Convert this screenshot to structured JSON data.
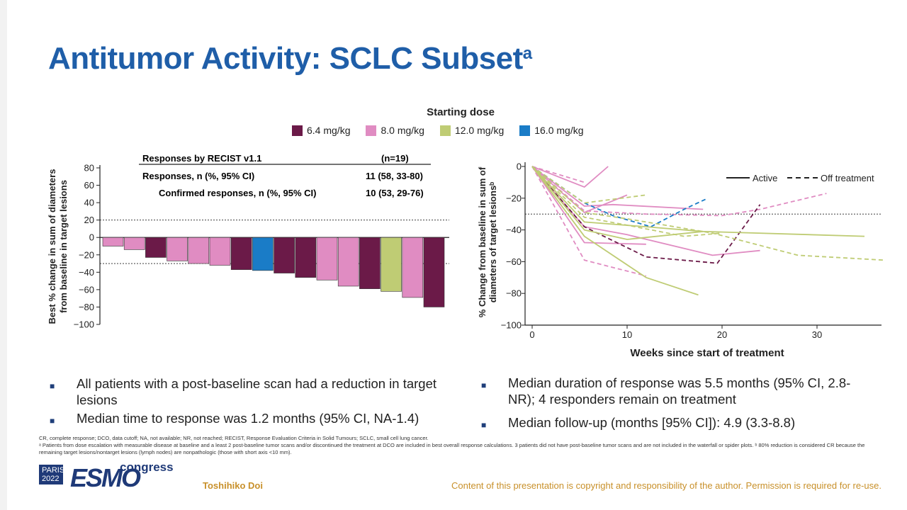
{
  "slide": {
    "title": "Antitumor Activity: SCLC Subset",
    "title_sup": "a",
    "legend_title": "Starting dose",
    "legend": [
      {
        "label": "6.4 mg/kg",
        "color": "#6b1a48"
      },
      {
        "label": "8.0 mg/kg",
        "color": "#e08cc2"
      },
      {
        "label": "12.0 mg/kg",
        "color": "#bfcc74"
      },
      {
        "label": "16.0 mg/kg",
        "color": "#1a7cc7"
      }
    ],
    "table": {
      "header_label": "Responses by RECIST v1.1",
      "header_value": "(n=19)",
      "row1_label": "Responses, n (%, 95% CI)",
      "row1_value": "11 (58, 33-80)",
      "row2_label": "Confirmed responses, n (%, 95% CI)",
      "row2_value": "10 (53, 29-76)"
    },
    "bullets_left": [
      "All patients with a post-baseline scan had a reduction in target lesions",
      "Median time to response was 1.2 months (95% CI, NA-1.4)"
    ],
    "bullets_right": [
      "Median duration of response was 5.5 months (95% CI, 2.8-NR); 4 responders remain on treatment",
      "Median follow-up (months [95% CI]): 4.9 (3.3-8.8)"
    ],
    "footnote1": "CR, complete response; DCO, data cutoff; NA, not available; NR, not reached; RECIST, Response Evaluation Criteria in Solid Tumours; SCLC, small cell lung cancer.",
    "footnote2": "ᵃ Patients from dose escalation with measurable disease at baseline and a least 2 post-baseline tumor scans and/or discontinued the treatment at DCO are included in best overall response calculations. 3 patients did not have post-baseline tumor scans and are not included in the waterfall or spider plots. ᵇ 80% reduction is considered CR because the remaining target lesions/nontarget lesions (lymph nodes) are nonpathologic (those with short axis <10 mm).",
    "logo_city": "PARIS",
    "logo_year": "2022",
    "logo_brand": "ESMO",
    "logo_congress": "congress",
    "author": "Toshihiko Doi",
    "copyright": "Content of this presentation is copyright and responsibility of the author. Permission is required for re-use."
  },
  "chart_data": [
    {
      "type": "bar",
      "title": "",
      "ylabel": "Best % change in sum of diameters from baseline in target lesions",
      "xlabel": "",
      "ylim": [
        -100,
        80
      ],
      "yticks": [
        80,
        60,
        40,
        20,
        0,
        -20,
        -40,
        -60,
        -80,
        -100
      ],
      "reference_lines": [
        20,
        -30
      ],
      "values": [
        -10,
        -14,
        -23,
        -27,
        -30,
        -32,
        -37,
        -38,
        -41,
        -46,
        -49,
        -56,
        -59,
        -62,
        -69,
        -80
      ],
      "colors": [
        "#e08cc2",
        "#e08cc2",
        "#6b1a48",
        "#e08cc2",
        "#e08cc2",
        "#e08cc2",
        "#6b1a48",
        "#1a7cc7",
        "#6b1a48",
        "#6b1a48",
        "#e08cc2",
        "#e08cc2",
        "#6b1a48",
        "#bfcc74",
        "#e08cc2",
        "#6b1a48"
      ]
    },
    {
      "type": "line",
      "title": "",
      "xlabel": "Weeks since start of treatment",
      "ylabel": "% Change from baseline in sum of diameters of target lesionsᵇ",
      "xlim": [
        0,
        37
      ],
      "ylim": [
        -100,
        0
      ],
      "xticks": [
        0,
        10,
        20,
        30
      ],
      "yticks": [
        0,
        -20,
        -40,
        -60,
        -80,
        -100
      ],
      "reference_lines": [
        -30
      ],
      "line_legend": [
        {
          "label": "Active",
          "style": "solid"
        },
        {
          "label": "Off treatment",
          "style": "dashed"
        }
      ],
      "series": [
        {
          "color": "#e08cc2",
          "dashed": false,
          "points": [
            [
              0,
              0
            ],
            [
              5.5,
              -13
            ],
            [
              8,
              0
            ]
          ]
        },
        {
          "color": "#e08cc2",
          "dashed": true,
          "points": [
            [
              0,
              0
            ],
            [
              5.5,
              -10
            ]
          ]
        },
        {
          "color": "#e08cc2",
          "dashed": false,
          "points": [
            [
              0,
              0
            ],
            [
              5.5,
              -25
            ],
            [
              8.5,
              -24
            ],
            [
              18,
              -27
            ]
          ]
        },
        {
          "color": "#e08cc2",
          "dashed": false,
          "points": [
            [
              0,
              0
            ],
            [
              5.5,
              -29
            ],
            [
              10,
              -18
            ]
          ]
        },
        {
          "color": "#e08cc2",
          "dashed": true,
          "points": [
            [
              0,
              0
            ],
            [
              5.5,
              -28
            ],
            [
              12,
              -30
            ],
            [
              20,
              -31
            ],
            [
              24,
              -27
            ],
            [
              31,
              -17
            ]
          ]
        },
        {
          "color": "#e08cc2",
          "dashed": false,
          "points": [
            [
              0,
              0
            ],
            [
              5.5,
              -38
            ],
            [
              10,
              -43
            ],
            [
              19,
              -56
            ],
            [
              24,
              -53
            ]
          ]
        },
        {
          "color": "#e08cc2",
          "dashed": false,
          "points": [
            [
              0,
              0
            ],
            [
              5.5,
              -48
            ],
            [
              12,
              -49
            ]
          ]
        },
        {
          "color": "#e08cc2",
          "dashed": true,
          "points": [
            [
              0,
              0
            ],
            [
              5.5,
              -59
            ],
            [
              12,
              -69
            ]
          ]
        },
        {
          "color": "#6b1a48",
          "dashed": true,
          "points": [
            [
              0,
              0
            ],
            [
              5.5,
              -38
            ],
            [
              12,
              -57
            ],
            [
              19.5,
              -61
            ],
            [
              24,
              -24
            ]
          ]
        },
        {
          "color": "#1a7cc7",
          "dashed": true,
          "points": [
            [
              0,
              0
            ],
            [
              5.5,
              -23
            ],
            [
              8.5,
              -31
            ],
            [
              12.5,
              -38
            ],
            [
              16,
              -27
            ],
            [
              18.5,
              -20
            ]
          ]
        },
        {
          "color": "#bfcc74",
          "dashed": true,
          "points": [
            [
              0,
              0
            ],
            [
              5.5,
              -23
            ],
            [
              12,
              -18
            ]
          ]
        },
        {
          "color": "#bfcc74",
          "dashed": true,
          "points": [
            [
              0,
              0
            ],
            [
              5.5,
              -29
            ],
            [
              10,
              -33
            ],
            [
              19,
              -42
            ],
            [
              28,
              -56
            ],
            [
              37,
              -59
            ]
          ]
        },
        {
          "color": "#bfcc74",
          "dashed": true,
          "points": [
            [
              0,
              0
            ],
            [
              5.5,
              -32
            ],
            [
              10,
              -37
            ],
            [
              16,
              -44
            ],
            [
              20,
              -42
            ]
          ]
        },
        {
          "color": "#bfcc74",
          "dashed": false,
          "points": [
            [
              0,
              0
            ],
            [
              5.5,
              -35
            ],
            [
              12,
              -38
            ],
            [
              18,
              -41
            ],
            [
              35,
              -44
            ]
          ]
        },
        {
          "color": "#bfcc74",
          "dashed": false,
          "points": [
            [
              0,
              0
            ],
            [
              5.5,
              -40
            ],
            [
              10,
              -46
            ],
            [
              18,
              -41
            ]
          ]
        },
        {
          "color": "#bfcc74",
          "dashed": false,
          "points": [
            [
              0,
              0
            ],
            [
              5.5,
              -44
            ],
            [
              12,
              -70
            ],
            [
              17.5,
              -81
            ]
          ]
        }
      ]
    }
  ]
}
